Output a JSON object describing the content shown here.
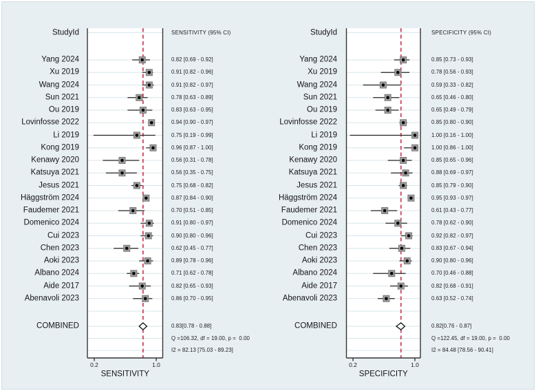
{
  "colors": {
    "background": "#e8eff3",
    "plot_background": "#ffffff",
    "grid_line": "#d8e5ea",
    "axis_line": "#333333",
    "ci_line": "#222222",
    "marker_fill": "#9d9d9d",
    "marker_border": "#787878",
    "marker_dot": "#000000",
    "pooled_dashed_line": "#c93a54",
    "diamond_fill": "#ffffff",
    "diamond_border": "#111111"
  },
  "chart_data": [
    {
      "type": "forest",
      "panel": "sensitivity",
      "study_header": "StudyId",
      "value_header": "SENSITIVITY (95% CI)",
      "axis_label": "SENSITIVITY",
      "axis_tick_values": [
        0.2,
        1.0
      ],
      "axis_tick_labels": [
        "0.2",
        "1.0"
      ],
      "pooled_line_value": 0.83,
      "studies": [
        {
          "label": "Yang 2024",
          "est": 0.82,
          "lo": 0.69,
          "hi": 0.92,
          "ci_text": "0.82 [0.69 - 0.92]"
        },
        {
          "label": "Xu 2019",
          "est": 0.91,
          "lo": 0.82,
          "hi": 0.96,
          "ci_text": "0.91 [0.82 - 0.96]"
        },
        {
          "label": "Wang 2024",
          "est": 0.91,
          "lo": 0.82,
          "hi": 0.97,
          "ci_text": "0.91 [0.82 - 0.97]"
        },
        {
          "label": "Sun 2021",
          "est": 0.78,
          "lo": 0.63,
          "hi": 0.89,
          "ci_text": "0.78 [0.63 - 0.89]"
        },
        {
          "label": "Ou 2019",
          "est": 0.83,
          "lo": 0.63,
          "hi": 0.95,
          "ci_text": "0.83 [0.63 - 0.95]"
        },
        {
          "label": "Lovinfosse 2022",
          "est": 0.94,
          "lo": 0.9,
          "hi": 0.97,
          "ci_text": "0.94 [0.90 - 0.97]"
        },
        {
          "label": "Li 2019",
          "est": 0.75,
          "lo": 0.19,
          "hi": 0.99,
          "ci_text": "0.75 [0.19 - 0.99]"
        },
        {
          "label": "Kong 2019",
          "est": 0.96,
          "lo": 0.87,
          "hi": 1.0,
          "ci_text": "0.96 [0.87 - 1.00]"
        },
        {
          "label": "Kenawy 2020",
          "est": 0.56,
          "lo": 0.31,
          "hi": 0.78,
          "ci_text": "0.56 [0.31 - 0.78]"
        },
        {
          "label": "Katsuya 2021",
          "est": 0.56,
          "lo": 0.35,
          "hi": 0.75,
          "ci_text": "0.56 [0.35 - 0.75]"
        },
        {
          "label": "Jesus 2021",
          "est": 0.75,
          "lo": 0.68,
          "hi": 0.82,
          "ci_text": "0.75 [0.68 - 0.82]"
        },
        {
          "label": "Häggström 2024",
          "est": 0.87,
          "lo": 0.84,
          "hi": 0.9,
          "ci_text": "0.87 [0.84 - 0.90]"
        },
        {
          "label": "Faudemer 2021",
          "est": 0.7,
          "lo": 0.51,
          "hi": 0.85,
          "ci_text": "0.70 [0.51 - 0.85]"
        },
        {
          "label": "Domenico 2024",
          "est": 0.91,
          "lo": 0.8,
          "hi": 0.97,
          "ci_text": "0.91 [0.80 - 0.97]"
        },
        {
          "label": "Cui 2023",
          "est": 0.9,
          "lo": 0.8,
          "hi": 0.96,
          "ci_text": "0.90 [0.80 - 0.96]"
        },
        {
          "label": "Chen 2023",
          "est": 0.62,
          "lo": 0.45,
          "hi": 0.77,
          "ci_text": "0.62 [0.45 - 0.77]"
        },
        {
          "label": "Aoki 2023",
          "est": 0.89,
          "lo": 0.78,
          "hi": 0.96,
          "ci_text": "0.89 [0.78 - 0.96]"
        },
        {
          "label": "Albano 2024",
          "est": 0.71,
          "lo": 0.62,
          "hi": 0.78,
          "ci_text": "0.71 [0.62 - 0.78]"
        },
        {
          "label": "Aide 2017",
          "est": 0.82,
          "lo": 0.65,
          "hi": 0.93,
          "ci_text": "0.82 [0.65 - 0.93]"
        },
        {
          "label": "Abenavoli 2023",
          "est": 0.86,
          "lo": 0.7,
          "hi": 0.95,
          "ci_text": "0.86 [0.70 - 0.95]"
        }
      ],
      "combined": {
        "label": "COMBINED",
        "est": 0.83,
        "lo": 0.78,
        "hi": 0.88,
        "ci_text": "0.83[0.78 - 0.88]"
      },
      "heterogeneity": {
        "q_text": "Q =106.32, df = 19.00, p =  0.00",
        "i2_text": "I2 = 82.13 [75.03 - 89.23]"
      }
    },
    {
      "type": "forest",
      "panel": "specificity",
      "study_header": "StudyId",
      "value_header": "SPECIFICITY (95% CI)",
      "axis_label": "SPECIFICITY",
      "axis_tick_values": [
        0.2,
        1.0
      ],
      "axis_tick_labels": [
        "0.2",
        "1.0"
      ],
      "pooled_line_value": 0.82,
      "studies": [
        {
          "label": "Yang 2024",
          "est": 0.85,
          "lo": 0.73,
          "hi": 0.93,
          "ci_text": "0.85 [0.73 - 0.93]"
        },
        {
          "label": "Xu 2019",
          "est": 0.78,
          "lo": 0.56,
          "hi": 0.93,
          "ci_text": "0.78 [0.56 - 0.93]"
        },
        {
          "label": "Wang 2024",
          "est": 0.59,
          "lo": 0.33,
          "hi": 0.82,
          "ci_text": "0.59 [0.33 - 0.82]"
        },
        {
          "label": "Sun 2021",
          "est": 0.65,
          "lo": 0.46,
          "hi": 0.8,
          "ci_text": "0.65 [0.46 - 0.80]"
        },
        {
          "label": "Ou 2019",
          "est": 0.65,
          "lo": 0.49,
          "hi": 0.79,
          "ci_text": "0.65 [0.49 - 0.79]"
        },
        {
          "label": "Lovinfosse 2022",
          "est": 0.85,
          "lo": 0.8,
          "hi": 0.9,
          "ci_text": "0.85 [0.80 - 0.90]"
        },
        {
          "label": "Li 2019",
          "est": 1.0,
          "lo": 0.16,
          "hi": 1.0,
          "ci_text": "1.00 [0.16 - 1.00]"
        },
        {
          "label": "Kong 2019",
          "est": 1.0,
          "lo": 0.86,
          "hi": 1.0,
          "ci_text": "1.00 [0.86 - 1.00]"
        },
        {
          "label": "Kenawy 2020",
          "est": 0.85,
          "lo": 0.65,
          "hi": 0.96,
          "ci_text": "0.85 [0.65 - 0.96]"
        },
        {
          "label": "Katsuya 2021",
          "est": 0.88,
          "lo": 0.69,
          "hi": 0.97,
          "ci_text": "0.88 [0.69 - 0.97]"
        },
        {
          "label": "Jesus 2021",
          "est": 0.85,
          "lo": 0.79,
          "hi": 0.9,
          "ci_text": "0.85 [0.79 - 0.90]"
        },
        {
          "label": "Häggström 2024",
          "est": 0.95,
          "lo": 0.93,
          "hi": 0.97,
          "ci_text": "0.95 [0.93 - 0.97]"
        },
        {
          "label": "Faudemer 2021",
          "est": 0.61,
          "lo": 0.43,
          "hi": 0.77,
          "ci_text": "0.61 [0.43 - 0.77]"
        },
        {
          "label": "Domenico 2024",
          "est": 0.78,
          "lo": 0.62,
          "hi": 0.9,
          "ci_text": "0.78 [0.62 - 0.90]"
        },
        {
          "label": "Cui 2023",
          "est": 0.92,
          "lo": 0.82,
          "hi": 0.97,
          "ci_text": "0.92 [0.82 - 0.97]"
        },
        {
          "label": "Chen 2023",
          "est": 0.83,
          "lo": 0.67,
          "hi": 0.94,
          "ci_text": "0.83 [0.67 - 0.94]"
        },
        {
          "label": "Aoki 2023",
          "est": 0.9,
          "lo": 0.8,
          "hi": 0.96,
          "ci_text": "0.90 [0.80 - 0.96]"
        },
        {
          "label": "Albano 2024",
          "est": 0.7,
          "lo": 0.46,
          "hi": 0.88,
          "ci_text": "0.70 [0.46 - 0.88]"
        },
        {
          "label": "Aide 2017",
          "est": 0.82,
          "lo": 0.68,
          "hi": 0.91,
          "ci_text": "0.82 [0.68 - 0.91]"
        },
        {
          "label": "Abenavoli 2023",
          "est": 0.63,
          "lo": 0.52,
          "hi": 0.74,
          "ci_text": "0.63 [0.52 - 0.74]"
        }
      ],
      "combined": {
        "label": "COMBINED",
        "est": 0.82,
        "lo": 0.76,
        "hi": 0.87,
        "ci_text": "0.82[0.76 - 0.87]"
      },
      "heterogeneity": {
        "q_text": "Q =122.45, df = 19.00, p =  0.00",
        "i2_text": "I2 = 84.48 [78.56 - 90.41]"
      }
    }
  ]
}
